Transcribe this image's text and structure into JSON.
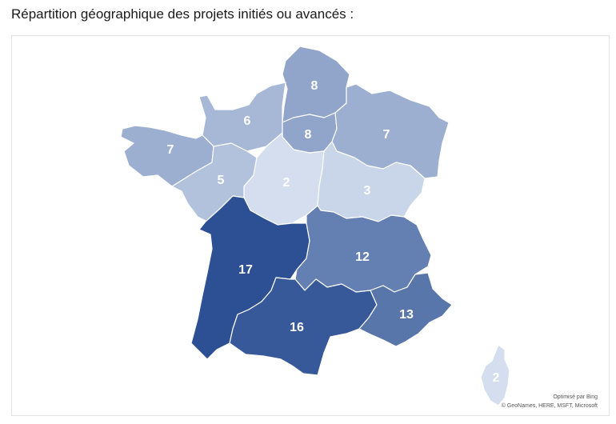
{
  "caption": "Répartition géographique des projets initiés ou avancés :",
  "attribution": {
    "line1": "Optimisé par Bing",
    "line2": "© GeoNames, HERE, MSFT, Microsoft"
  },
  "colors": {
    "scale_low": "#d4deee",
    "scale_high": "#2c5093",
    "border": "#ffffff"
  },
  "regions": [
    {
      "id": "hauts-de-france",
      "value": 8
    },
    {
      "id": "normandie",
      "value": 6
    },
    {
      "id": "ile-de-france",
      "value": 8
    },
    {
      "id": "grand-est",
      "value": 7
    },
    {
      "id": "bretagne",
      "value": 7
    },
    {
      "id": "pays-de-la-loire",
      "value": 5
    },
    {
      "id": "centre-val-de-loire",
      "value": 2
    },
    {
      "id": "bourgogne-franche-comte",
      "value": 3
    },
    {
      "id": "nouvelle-aquitaine",
      "value": 17
    },
    {
      "id": "auvergne-rhone-alpes",
      "value": 12
    },
    {
      "id": "occitanie",
      "value": 16
    },
    {
      "id": "provence-alpes-cote-d-azur",
      "value": 13
    },
    {
      "id": "corse",
      "value": 2
    }
  ],
  "labels": {
    "hauts-de-france": "8",
    "normandie": "6",
    "ile-de-france": "8",
    "grand-est": "7",
    "bretagne": "7",
    "pays-de-la-loire": "5",
    "centre-val-de-loire": "2",
    "bourgogne-franche-comte": "3",
    "nouvelle-aquitaine": "17",
    "auvergne-rhone-alpes": "12",
    "occitanie": "16",
    "provence-alpes-cote-d-azur": "13",
    "corse": "2"
  }
}
